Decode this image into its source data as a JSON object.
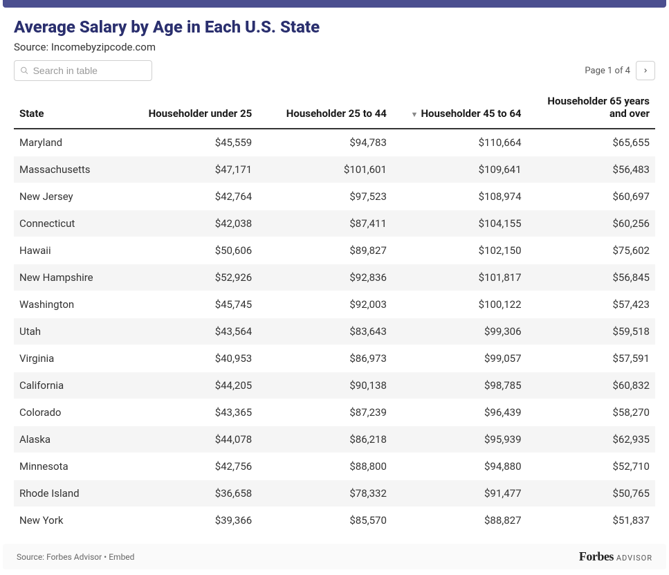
{
  "header": {
    "title": "Average Salary by Age in Each U.S. State",
    "subtitle": "Source: Incomebyzipcode.com"
  },
  "search": {
    "placeholder": "Search in table"
  },
  "pager": {
    "text": "Page 1 of 4"
  },
  "table": {
    "columns": [
      {
        "label": "State",
        "align": "left"
      },
      {
        "label": "Householder under 25",
        "align": "right"
      },
      {
        "label": "Householder 25 to 44",
        "align": "right"
      },
      {
        "label": "Householder 45 to 64",
        "align": "right",
        "sorted": "desc"
      },
      {
        "label": "Householder 65 years and over",
        "align": "right"
      }
    ],
    "rows": [
      [
        "Maryland",
        "$45,559",
        "$94,783",
        "$110,664",
        "$65,655"
      ],
      [
        "Massachusetts",
        "$47,171",
        "$101,601",
        "$109,641",
        "$56,483"
      ],
      [
        "New Jersey",
        "$42,764",
        "$97,523",
        "$108,974",
        "$60,697"
      ],
      [
        "Connecticut",
        "$42,038",
        "$87,411",
        "$104,155",
        "$60,256"
      ],
      [
        "Hawaii",
        "$50,606",
        "$89,827",
        "$102,150",
        "$75,602"
      ],
      [
        "New Hampshire",
        "$52,926",
        "$92,836",
        "$101,817",
        "$56,845"
      ],
      [
        "Washington",
        "$45,745",
        "$92,003",
        "$100,122",
        "$57,423"
      ],
      [
        "Utah",
        "$43,564",
        "$83,643",
        "$99,306",
        "$59,518"
      ],
      [
        "Virginia",
        "$40,953",
        "$86,973",
        "$99,057",
        "$57,591"
      ],
      [
        "California",
        "$44,205",
        "$90,138",
        "$98,785",
        "$60,832"
      ],
      [
        "Colorado",
        "$43,365",
        "$87,239",
        "$96,439",
        "$58,270"
      ],
      [
        "Alaska",
        "$44,078",
        "$86,218",
        "$95,939",
        "$62,935"
      ],
      [
        "Minnesota",
        "$42,756",
        "$88,800",
        "$94,880",
        "$52,710"
      ],
      [
        "Rhode Island",
        "$36,658",
        "$78,332",
        "$91,477",
        "$50,765"
      ],
      [
        "New York",
        "$39,366",
        "$85,570",
        "$88,827",
        "$51,837"
      ]
    ]
  },
  "footer": {
    "source_prefix": "Source: ",
    "source_link": "Forbes Advisor",
    "sep": " • ",
    "embed": "Embed",
    "brand_main": "Forbes",
    "brand_sub": "ADVISOR"
  },
  "style": {
    "title_color": "#2a2f6e",
    "topbar_color": "#4b4f8f",
    "row_stripe": "#f5f5f5",
    "text_color": "#333333"
  }
}
